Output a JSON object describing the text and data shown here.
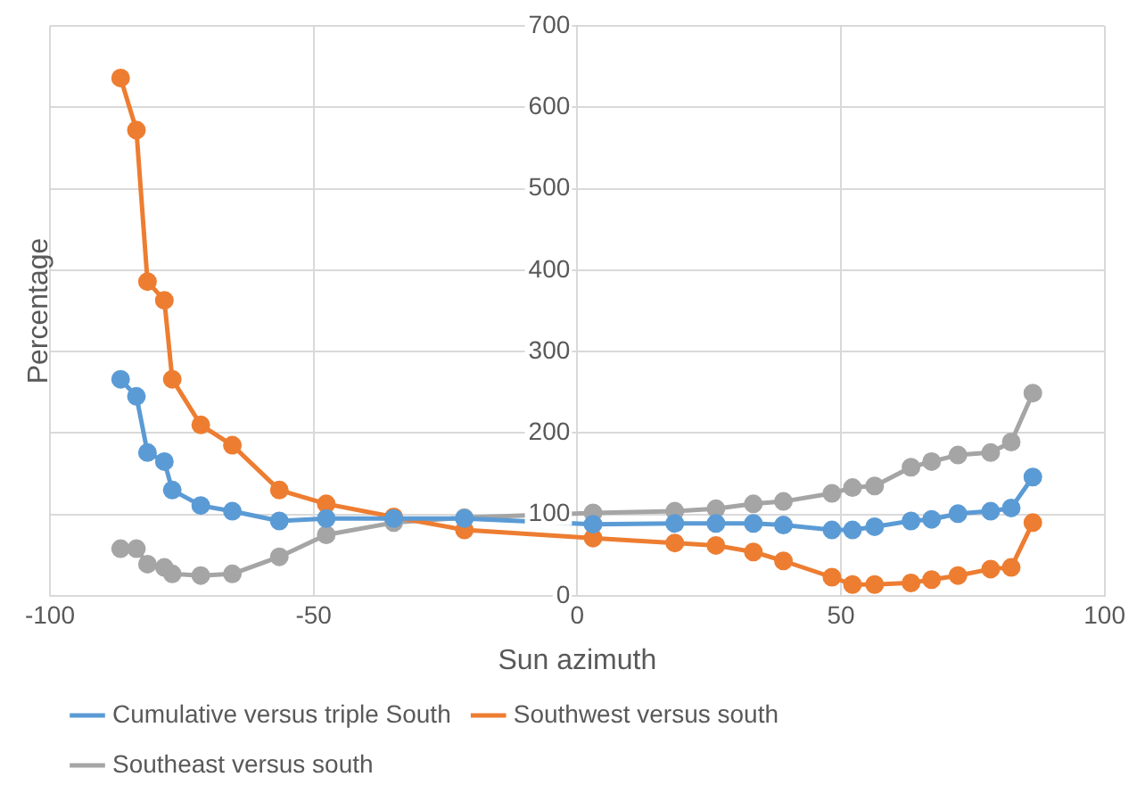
{
  "chart_data": {
    "type": "line",
    "xlabel": "Sun azimuth",
    "ylabel": "Percentage",
    "x": [
      -86.6,
      -83.6,
      -81.5,
      -78.3,
      -76.8,
      -71.4,
      -65.4,
      -56.5,
      -47.6,
      -34.8,
      -21.4,
      3,
      18.5,
      26.3,
      33.4,
      39.1,
      48.3,
      52.2,
      56.4,
      63.3,
      67.2,
      72.2,
      78.4,
      82.3,
      86.4
    ],
    "series": [
      {
        "name": "Cumulative versus triple South",
        "color": "#5b9bd5",
        "values": [
          266,
          245,
          176,
          165,
          130,
          111,
          104,
          92,
          95,
          95,
          95,
          88,
          89,
          89,
          89,
          87,
          81,
          81,
          85,
          92,
          94,
          101,
          104,
          108,
          146
        ]
      },
      {
        "name": "Southwest versus south",
        "color": "#ed7d31",
        "values": [
          636,
          572,
          386,
          363,
          266,
          210,
          185,
          130,
          113,
          97,
          81,
          71,
          65,
          62,
          54,
          43,
          23,
          14,
          14,
          16,
          20,
          25,
          33,
          35,
          90
        ]
      },
      {
        "name": "Southeast versus south",
        "color": "#a5a5a5",
        "values": [
          58,
          58,
          39,
          35,
          27,
          25,
          27,
          48,
          75,
          90,
          96,
          102,
          104,
          107,
          113,
          116,
          126,
          133,
          135,
          158,
          165,
          173,
          176,
          189,
          249
        ]
      }
    ],
    "xlim": [
      -100,
      100
    ],
    "xticks": [
      -100,
      -50,
      0,
      50,
      100
    ],
    "ylim": [
      0,
      700
    ],
    "yticks": [
      0,
      100,
      200,
      300,
      400,
      500,
      600,
      700
    ],
    "grid": true,
    "legend": "bottom",
    "marker": "circle",
    "line_style": "solid"
  }
}
